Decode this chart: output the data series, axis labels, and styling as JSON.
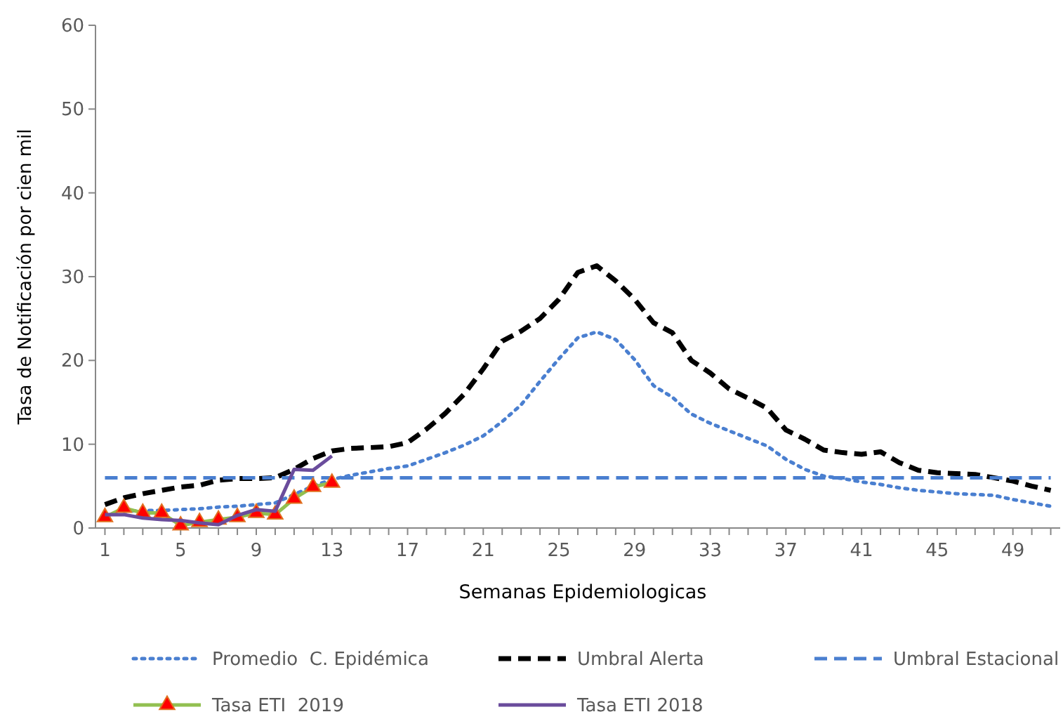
{
  "chart_data": {
    "type": "line",
    "xlabel": "Semanas Epidemiologicas",
    "ylabel": "Tasa de Notificación por cien mil",
    "x": [
      1,
      2,
      3,
      4,
      5,
      6,
      7,
      8,
      9,
      10,
      11,
      12,
      13,
      14,
      15,
      16,
      17,
      18,
      19,
      20,
      21,
      22,
      23,
      24,
      25,
      26,
      27,
      28,
      29,
      30,
      31,
      32,
      33,
      34,
      35,
      36,
      37,
      38,
      39,
      40,
      41,
      42,
      43,
      44,
      45,
      46,
      47,
      48,
      49,
      50,
      51
    ],
    "xlim": [
      0.5,
      51.5
    ],
    "ylim": [
      0,
      60
    ],
    "yticks": [
      0,
      10,
      20,
      30,
      40,
      50,
      60
    ],
    "xticks": [
      1,
      {
        "value": 2,
        "label": null
      },
      {
        "value": 3,
        "label": null
      },
      {
        "value": 4,
        "label": null
      },
      5,
      {
        "value": 6,
        "label": null
      },
      {
        "value": 7,
        "label": null
      },
      {
        "value": 8,
        "label": null
      },
      9,
      {
        "value": 10,
        "label": null
      },
      {
        "value": 11,
        "label": null
      },
      {
        "value": 12,
        "label": null
      },
      13,
      {
        "value": 14,
        "label": null
      },
      {
        "value": 15,
        "label": null
      },
      {
        "value": 16,
        "label": null
      },
      17,
      {
        "value": 18,
        "label": null
      },
      {
        "value": 19,
        "label": null
      },
      {
        "value": 20,
        "label": null
      },
      21,
      {
        "value": 22,
        "label": null
      },
      {
        "value": 23,
        "label": null
      },
      {
        "value": 24,
        "label": null
      },
      25,
      {
        "value": 26,
        "label": null
      },
      {
        "value": 27,
        "label": null
      },
      {
        "value": 28,
        "label": null
      },
      29,
      {
        "value": 30,
        "label": null
      },
      {
        "value": 31,
        "label": null
      },
      {
        "value": 32,
        "label": null
      },
      33,
      {
        "value": 34,
        "label": null
      },
      {
        "value": 35,
        "label": null
      },
      {
        "value": 36,
        "label": null
      },
      37,
      {
        "value": 38,
        "label": null
      },
      {
        "value": 39,
        "label": null
      },
      {
        "value": 40,
        "label": null
      },
      41,
      {
        "value": 42,
        "label": null
      },
      {
        "value": 43,
        "label": null
      },
      {
        "value": 44,
        "label": null
      },
      45,
      {
        "value": 46,
        "label": null
      },
      {
        "value": 47,
        "label": null
      },
      {
        "value": 48,
        "label": null
      },
      49,
      {
        "value": 50,
        "label": null
      },
      {
        "value": 51,
        "label": null
      }
    ],
    "grid": false,
    "legend": "bottom",
    "series": [
      {
        "name": "Promedio  C. Epidémica",
        "color": "#4a7fd0",
        "line_style": "dotted",
        "marker": "none",
        "values": [
          null,
          2.0,
          2.1,
          2.1,
          2.2,
          2.3,
          2.5,
          2.6,
          2.8,
          3.0,
          4.0,
          5.0,
          5.8,
          6.3,
          6.7,
          7.1,
          7.4,
          8.2,
          9.0,
          9.9,
          11.0,
          12.7,
          14.7,
          17.5,
          20.2,
          22.7,
          23.4,
          22.5,
          20.1,
          17.0,
          15.6,
          13.6,
          12.5,
          11.6,
          10.7,
          9.8,
          8.2,
          7.0,
          6.2,
          5.9,
          5.5,
          5.2,
          4.8,
          4.5,
          4.3,
          4.1,
          4.0,
          3.9,
          3.4,
          3.0,
          2.6
        ]
      },
      {
        "name": "Umbral Alerta",
        "color": "#000000",
        "line_style": "dashed",
        "marker": "none",
        "values": [
          2.8,
          3.6,
          4.1,
          4.5,
          4.9,
          5.1,
          5.7,
          5.9,
          5.9,
          6.0,
          7.0,
          8.3,
          9.2,
          9.5,
          9.6,
          9.7,
          10.2,
          11.8,
          13.7,
          16.0,
          19.0,
          22.3,
          23.5,
          25.0,
          27.3,
          30.5,
          31.3,
          29.5,
          27.3,
          24.5,
          23.3,
          20.0,
          18.5,
          16.6,
          15.5,
          14.3,
          11.7,
          10.6,
          9.3,
          9.0,
          8.8,
          9.1,
          7.8,
          6.9,
          6.6,
          6.5,
          6.4,
          6.0,
          5.6,
          5.0,
          4.5
        ]
      },
      {
        "name": "Umbral Estacional",
        "color": "#4a7fd0",
        "line_style": "dashed",
        "marker": "none",
        "values": [
          6,
          6,
          6,
          6,
          6,
          6,
          6,
          6,
          6,
          6,
          6,
          6,
          6,
          6,
          6,
          6,
          6,
          6,
          6,
          6,
          6,
          6,
          6,
          6,
          6,
          6,
          6,
          6,
          6,
          6,
          6,
          6,
          6,
          6,
          6,
          6,
          6,
          6,
          6,
          6,
          6,
          6,
          6,
          6,
          6,
          6,
          6,
          6,
          6,
          6,
          6
        ]
      },
      {
        "name": "Tasa ETI  2019",
        "color": "#92c050",
        "line_style": "solid",
        "marker": "none",
        "values": [
          1.3,
          2.4,
          1.8,
          1.8,
          0.3,
          0.7,
          1.0,
          1.3,
          1.8,
          1.6,
          3.5,
          4.9,
          5.4,
          null,
          null,
          null,
          null,
          null,
          null,
          null,
          null,
          null,
          null,
          null,
          null,
          null,
          null,
          null,
          null,
          null,
          null,
          null,
          null,
          null,
          null,
          null,
          null,
          null,
          null,
          null,
          null,
          null,
          null,
          null,
          null,
          null,
          null,
          null,
          null,
          null,
          null
        ]
      },
      {
        "type": "scatter",
        "color": "#ff0000",
        "marker": "triangle",
        "x": [
          1,
          2,
          3,
          4,
          5,
          6,
          7,
          8,
          9,
          10,
          11,
          12,
          13
        ],
        "values": [
          1.3,
          2.4,
          1.8,
          1.8,
          0.3,
          0.7,
          1.0,
          1.3,
          1.8,
          1.6,
          3.5,
          4.9,
          5.4
        ]
      },
      {
        "name": "Tasa ETI 2018",
        "color": "#6a4c9c",
        "line_style": "solid",
        "marker": "none",
        "values": [
          1.6,
          1.6,
          1.2,
          1.0,
          0.9,
          0.6,
          0.4,
          1.5,
          2.2,
          2.0,
          7.0,
          6.9,
          8.6,
          null,
          null,
          null,
          null,
          null,
          null,
          null,
          null,
          null,
          null,
          null,
          null,
          null,
          null,
          null,
          null,
          null,
          null,
          null,
          null,
          null,
          null,
          null,
          null,
          null,
          null,
          null,
          null,
          null,
          null,
          null,
          null,
          null,
          null,
          null,
          null,
          null,
          null
        ]
      }
    ]
  }
}
